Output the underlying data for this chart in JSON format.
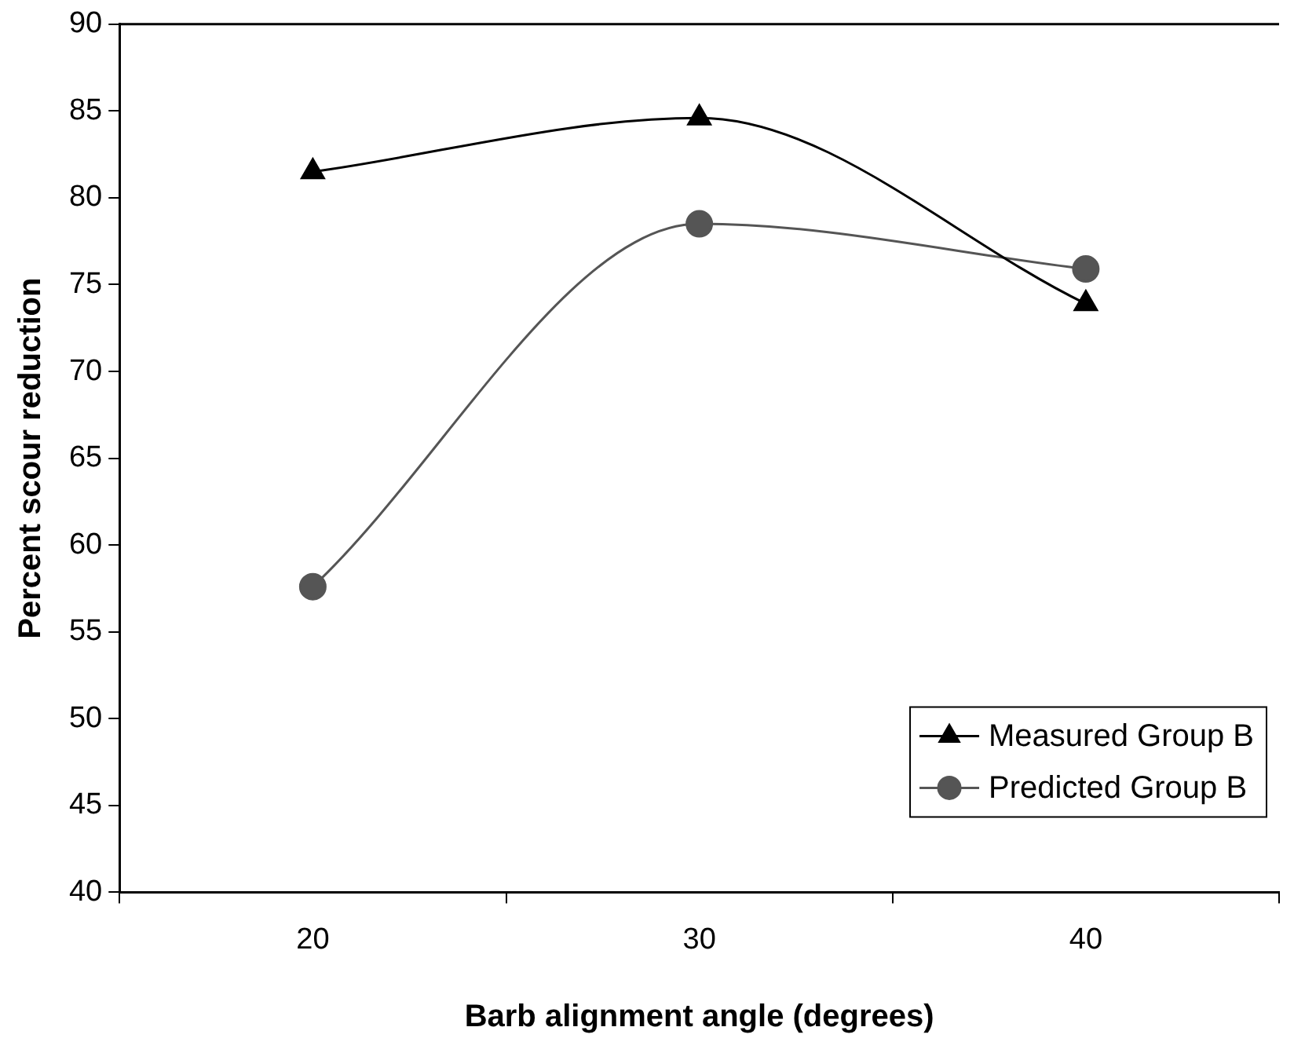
{
  "chart_data": {
    "type": "line",
    "xlabel": "Barb alignment angle (degrees)",
    "ylabel": "Percent scour reduction",
    "categories": [
      "20",
      "30",
      "40"
    ],
    "series": [
      {
        "name": "Measured Group B",
        "color": "#000000",
        "marker": "triangle",
        "values": [
          81.5,
          84.6,
          73.9
        ]
      },
      {
        "name": "Predicted Group B",
        "color": "#555555",
        "marker": "circle",
        "values": [
          57.6,
          78.5,
          75.9
        ]
      }
    ],
    "ylim": [
      40,
      90
    ],
    "yticks": [
      40,
      45,
      50,
      55,
      60,
      65,
      70,
      75,
      80,
      85,
      90
    ],
    "grid": false,
    "legend": "bottom right"
  }
}
